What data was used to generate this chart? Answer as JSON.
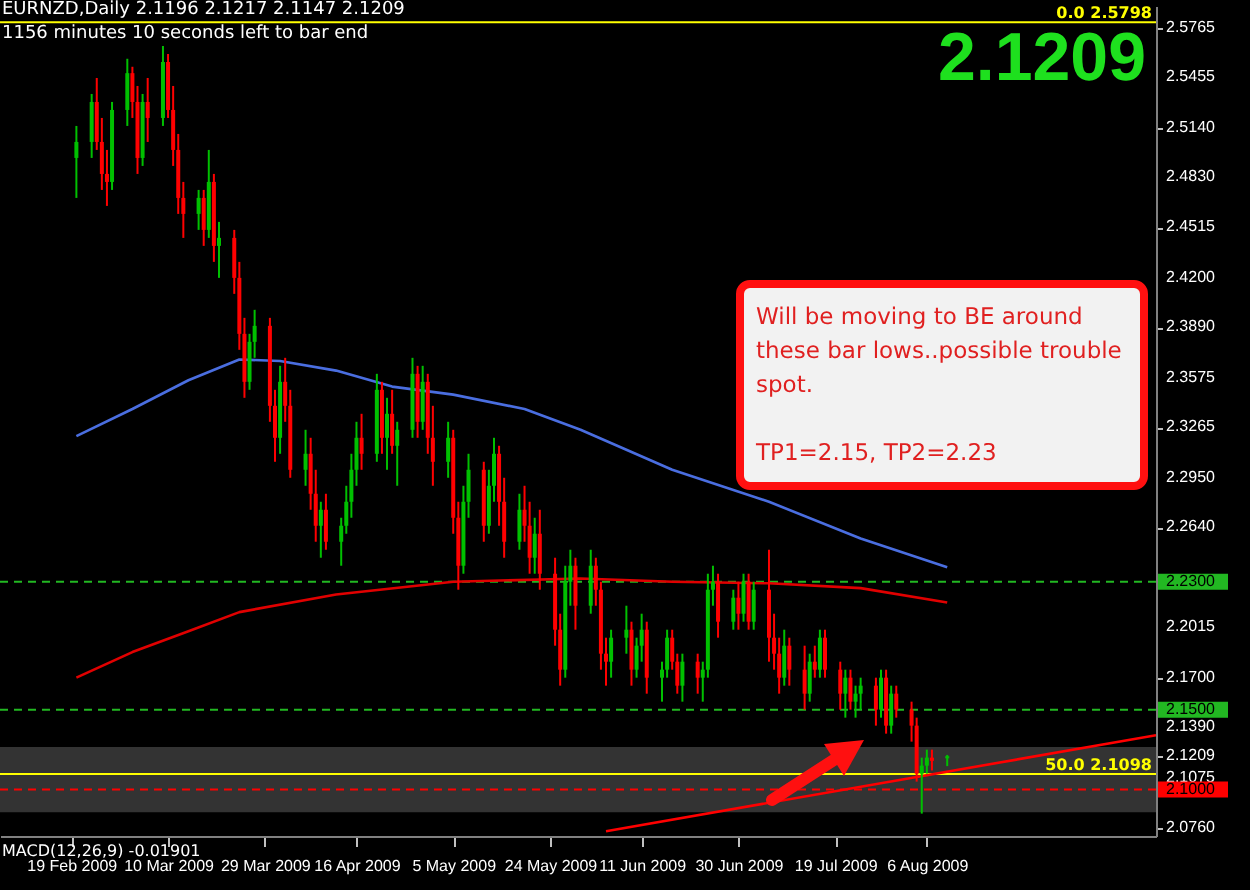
{
  "chart_data": {
    "type": "candlestick",
    "title": "EURNZD,Daily  2.1196 2.1217 2.1147 2.1209",
    "subtitle": "1156 minutes 10 seconds left to bar end",
    "annotations": [
      "Will be moving to BE around these bar lows..possible trouble spot.",
      "TP1=2.15, TP2=2.23",
      "2.1209",
      "MACD(12,26,9) -0.01901"
    ],
    "xlim": [
      "2009-02-05",
      "2009-09-20"
    ],
    "xticks": [
      {
        "value": "2009-02-19",
        "label": "19 Feb 2009"
      },
      {
        "value": "2009-03-10",
        "label": "10 Mar 2009"
      },
      {
        "value": "2009-03-29",
        "label": "29 Mar 2009"
      },
      {
        "value": "2009-04-16",
        "label": "16 Apr 2009"
      },
      {
        "value": "2009-05-05",
        "label": "5 May 2009"
      },
      {
        "value": "2009-05-24",
        "label": "24 May 2009"
      },
      {
        "value": "2009-06-11",
        "label": "11 Jun 2009"
      },
      {
        "value": "2009-06-30",
        "label": "30 Jun 2009"
      },
      {
        "value": "2009-07-19",
        "label": "19 Jul 2009"
      },
      {
        "value": "2009-08-06",
        "label": "6 Aug 2009"
      }
    ],
    "ylim": [
      2.071,
      2.59
    ],
    "yticks": [
      2.5765,
      2.5455,
      {
        "value": 2.514,
        "label": "2.5140"
      },
      {
        "value": 2.483,
        "label": "2.4830"
      },
      2.4515,
      {
        "value": 2.42,
        "label": "2.4200"
      },
      {
        "value": 2.389,
        "label": "2.3890"
      },
      2.3575,
      2.3265,
      {
        "value": 2.295,
        "label": "2.2950"
      },
      {
        "value": 2.264,
        "label": "2.2640"
      },
      2.2015,
      {
        "value": 2.17,
        "label": "2.1700"
      },
      {
        "value": 2.139,
        "label": "2.1390"
      },
      {
        "value": 2.1209,
        "label": "2.1209"
      },
      2.1075,
      {
        "value": 2.076,
        "label": "2.0760"
      }
    ],
    "grid": false,
    "x": [
      "2009-02-20",
      "2009-02-23",
      "2009-02-24",
      "2009-02-25",
      "2009-02-26",
      "2009-02-27",
      "2009-03-02",
      "2009-03-03",
      "2009-03-04",
      "2009-03-05",
      "2009-03-06",
      "2009-03-09",
      "2009-03-10",
      "2009-03-11",
      "2009-03-12",
      "2009-03-13",
      "2009-03-16",
      "2009-03-17",
      "2009-03-18",
      "2009-03-19",
      "2009-03-20",
      "2009-03-23",
      "2009-03-24",
      "2009-03-25",
      "2009-03-26",
      "2009-03-27",
      "2009-03-30",
      "2009-03-31",
      "2009-04-01",
      "2009-04-02",
      "2009-04-03",
      "2009-04-06",
      "2009-04-07",
      "2009-04-08",
      "2009-04-09",
      "2009-04-10",
      "2009-04-13",
      "2009-04-14",
      "2009-04-15",
      "2009-04-16",
      "2009-04-17",
      "2009-04-20",
      "2009-04-21",
      "2009-04-22",
      "2009-04-23",
      "2009-04-24",
      "2009-04-27",
      "2009-04-28",
      "2009-04-29",
      "2009-04-30",
      "2009-05-01",
      "2009-05-04",
      "2009-05-05",
      "2009-05-06",
      "2009-05-07",
      "2009-05-08",
      "2009-05-11",
      "2009-05-12",
      "2009-05-13",
      "2009-05-14",
      "2009-05-15",
      "2009-05-18",
      "2009-05-19",
      "2009-05-20",
      "2009-05-21",
      "2009-05-22",
      "2009-05-25",
      "2009-05-26",
      "2009-05-27",
      "2009-05-28",
      "2009-05-29",
      "2009-06-01",
      "2009-06-02",
      "2009-06-03",
      "2009-06-04",
      "2009-06-05",
      "2009-06-08",
      "2009-06-09",
      "2009-06-10",
      "2009-06-11",
      "2009-06-12",
      "2009-06-15",
      "2009-06-16",
      "2009-06-17",
      "2009-06-18",
      "2009-06-19",
      "2009-06-22",
      "2009-06-23",
      "2009-06-24",
      "2009-06-25",
      "2009-06-26",
      "2009-06-29",
      "2009-06-30",
      "2009-07-01",
      "2009-07-02",
      "2009-07-03",
      "2009-07-06",
      "2009-07-07",
      "2009-07-08",
      "2009-07-09",
      "2009-07-10",
      "2009-07-13",
      "2009-07-14",
      "2009-07-15",
      "2009-07-16",
      "2009-07-17",
      "2009-07-20",
      "2009-07-21",
      "2009-07-22",
      "2009-07-23",
      "2009-07-24",
      "2009-07-27",
      "2009-07-28",
      "2009-07-29",
      "2009-07-30",
      "2009-07-31",
      "2009-08-03",
      "2009-08-04",
      "2009-08-05",
      "2009-08-06",
      "2009-08-07",
      "2009-08-10"
    ],
    "ohlc": [
      [
        2.495,
        2.515,
        2.47,
        2.505
      ],
      [
        2.505,
        2.535,
        2.495,
        2.53
      ],
      [
        2.53,
        2.545,
        2.5,
        2.505
      ],
      [
        2.505,
        2.52,
        2.475,
        2.485
      ],
      [
        2.485,
        2.5,
        2.465,
        2.48
      ],
      [
        2.48,
        2.53,
        2.475,
        2.525
      ],
      [
        2.525,
        2.557,
        2.515,
        2.548
      ],
      [
        2.548,
        2.552,
        2.52,
        2.53
      ],
      [
        2.53,
        2.54,
        2.485,
        2.495
      ],
      [
        2.495,
        2.535,
        2.49,
        2.53
      ],
      [
        2.53,
        2.545,
        2.505,
        2.52
      ],
      [
        2.52,
        2.565,
        2.515,
        2.555
      ],
      [
        2.555,
        2.56,
        2.52,
        2.525
      ],
      [
        2.525,
        2.54,
        2.49,
        2.5
      ],
      [
        2.5,
        2.51,
        2.46,
        2.47
      ],
      [
        2.47,
        2.48,
        2.445,
        2.46
      ],
      [
        2.46,
        2.475,
        2.45,
        2.47
      ],
      [
        2.47,
        2.475,
        2.44,
        2.45
      ],
      [
        2.45,
        2.5,
        2.445,
        2.48
      ],
      [
        2.48,
        2.485,
        2.43,
        2.44
      ],
      [
        2.44,
        2.455,
        2.42,
        2.445
      ],
      [
        2.445,
        2.45,
        2.41,
        2.42
      ],
      [
        2.42,
        2.43,
        2.375,
        2.385
      ],
      [
        2.385,
        2.395,
        2.345,
        2.355
      ],
      [
        2.355,
        2.385,
        2.35,
        2.38
      ],
      [
        2.38,
        2.4,
        2.37,
        2.39
      ],
      [
        2.39,
        2.395,
        2.33,
        2.34
      ],
      [
        2.34,
        2.35,
        2.305,
        2.32
      ],
      [
        2.32,
        2.365,
        2.31,
        2.355
      ],
      [
        2.355,
        2.37,
        2.33,
        2.34
      ],
      [
        2.34,
        2.35,
        2.295,
        2.3
      ],
      [
        2.3,
        2.325,
        2.29,
        2.31
      ],
      [
        2.31,
        2.32,
        2.275,
        2.285
      ],
      [
        2.285,
        2.3,
        2.255,
        2.265
      ],
      [
        2.265,
        2.28,
        2.245,
        2.275
      ],
      [
        2.275,
        2.285,
        2.25,
        2.255
      ],
      [
        2.255,
        2.27,
        2.24,
        2.265
      ],
      [
        2.265,
        2.29,
        2.26,
        2.28
      ],
      [
        2.28,
        2.31,
        2.27,
        2.3
      ],
      [
        2.3,
        2.33,
        2.29,
        2.32
      ],
      [
        2.32,
        2.335,
        2.3,
        2.31
      ],
      [
        2.31,
        2.36,
        2.305,
        2.35
      ],
      [
        2.35,
        2.355,
        2.31,
        2.32
      ],
      [
        2.32,
        2.345,
        2.3,
        2.335
      ],
      [
        2.335,
        2.35,
        2.31,
        2.315
      ],
      [
        2.315,
        2.33,
        2.29,
        2.325
      ],
      [
        2.325,
        2.37,
        2.32,
        2.36
      ],
      [
        2.36,
        2.365,
        2.32,
        2.33
      ],
      [
        2.33,
        2.365,
        2.325,
        2.355
      ],
      [
        2.355,
        2.36,
        2.31,
        2.32
      ],
      [
        2.32,
        2.34,
        2.29,
        2.305
      ],
      [
        2.305,
        2.33,
        2.295,
        2.32
      ],
      [
        2.32,
        2.325,
        2.26,
        2.27
      ],
      [
        2.27,
        2.28,
        2.225,
        2.24
      ],
      [
        2.24,
        2.29,
        2.235,
        2.28
      ],
      [
        2.28,
        2.31,
        2.27,
        2.3
      ],
      [
        2.3,
        2.305,
        2.255,
        2.265
      ],
      [
        2.265,
        2.3,
        2.26,
        2.29
      ],
      [
        2.29,
        2.32,
        2.28,
        2.31
      ],
      [
        2.31,
        2.315,
        2.265,
        2.28
      ],
      [
        2.28,
        2.295,
        2.245,
        2.255
      ],
      [
        2.255,
        2.285,
        2.25,
        2.275
      ],
      [
        2.275,
        2.29,
        2.255,
        2.265
      ],
      [
        2.265,
        2.28,
        2.235,
        2.245
      ],
      [
        2.245,
        2.27,
        2.235,
        2.26
      ],
      [
        2.26,
        2.275,
        2.225,
        2.235
      ],
      [
        2.235,
        2.245,
        2.19,
        2.2
      ],
      [
        2.2,
        2.21,
        2.165,
        2.175
      ],
      [
        2.175,
        2.24,
        2.17,
        2.23
      ],
      [
        2.23,
        2.25,
        2.215,
        2.24
      ],
      [
        2.24,
        2.245,
        2.2,
        2.215
      ],
      [
        2.215,
        2.25,
        2.21,
        2.24
      ],
      [
        2.24,
        2.245,
        2.215,
        2.225
      ],
      [
        2.225,
        2.23,
        2.175,
        2.185
      ],
      [
        2.185,
        2.195,
        2.165,
        2.18
      ],
      [
        2.18,
        2.2,
        2.17,
        2.195
      ],
      [
        2.195,
        2.215,
        2.185,
        2.2
      ],
      [
        2.2,
        2.205,
        2.165,
        2.175
      ],
      [
        2.175,
        2.195,
        2.17,
        2.19
      ],
      [
        2.19,
        2.21,
        2.18,
        2.2
      ],
      [
        2.2,
        2.205,
        2.16,
        2.17
      ],
      [
        2.17,
        2.18,
        2.155,
        2.175
      ],
      [
        2.175,
        2.2,
        2.17,
        2.195
      ],
      [
        2.195,
        2.2,
        2.175,
        2.18
      ],
      [
        2.18,
        2.185,
        2.16,
        2.165
      ],
      [
        2.165,
        2.185,
        2.155,
        2.18
      ],
      [
        2.18,
        2.185,
        2.16,
        2.17
      ],
      [
        2.17,
        2.18,
        2.155,
        2.175
      ],
      [
        2.175,
        2.235,
        2.17,
        2.225
      ],
      [
        2.225,
        2.24,
        2.215,
        2.23
      ],
      [
        2.23,
        2.235,
        2.195,
        2.205
      ],
      [
        2.205,
        2.225,
        2.2,
        2.22
      ],
      [
        2.22,
        2.23,
        2.2,
        2.21
      ],
      [
        2.21,
        2.235,
        2.205,
        2.23
      ],
      [
        2.23,
        2.235,
        2.2,
        2.205
      ],
      [
        2.205,
        2.23,
        2.2,
        2.225
      ],
      [
        2.225,
        2.25,
        2.18,
        2.195
      ],
      [
        2.195,
        2.21,
        2.175,
        2.185
      ],
      [
        2.185,
        2.195,
        2.16,
        2.17
      ],
      [
        2.17,
        2.2,
        2.165,
        2.19
      ],
      [
        2.19,
        2.195,
        2.165,
        2.175
      ],
      [
        2.175,
        2.19,
        2.15,
        2.16
      ],
      [
        2.16,
        2.185,
        2.155,
        2.18
      ],
      [
        2.18,
        2.19,
        2.17,
        2.175
      ],
      [
        2.175,
        2.2,
        2.17,
        2.195
      ],
      [
        2.195,
        2.2,
        2.17,
        2.175
      ],
      [
        2.175,
        2.18,
        2.15,
        2.16
      ],
      [
        2.16,
        2.175,
        2.145,
        2.17
      ],
      [
        2.17,
        2.175,
        2.15,
        2.155
      ],
      [
        2.155,
        2.165,
        2.145,
        2.16
      ],
      [
        2.16,
        2.17,
        2.15,
        2.165
      ],
      [
        2.165,
        2.17,
        2.14,
        2.15
      ],
      [
        2.15,
        2.175,
        2.145,
        2.17
      ],
      [
        2.17,
        2.175,
        2.135,
        2.14
      ],
      [
        2.14,
        2.165,
        2.135,
        2.16
      ],
      [
        2.16,
        2.165,
        2.145,
        2.15
      ],
      [
        2.15,
        2.155,
        2.13,
        2.14
      ],
      [
        2.14,
        2.145,
        2.105,
        2.11
      ],
      [
        2.11,
        2.12,
        2.085,
        2.115
      ],
      [
        2.115,
        2.125,
        2.11,
        2.12
      ],
      [
        2.12,
        2.125,
        2.112,
        2.118
      ],
      [
        2.1196,
        2.1217,
        2.1147,
        2.1209
      ]
    ],
    "colors": [
      "#00c000",
      "#00c000",
      "#ff0000",
      "#ff0000",
      "#ff0000",
      "#00c000",
      "#00c000",
      "#ff0000",
      "#ff0000",
      "#00c000",
      "#ff0000",
      "#00c000",
      "#ff0000",
      "#ff0000",
      "#ff0000",
      "#ff0000",
      "#00c000",
      "#ff0000",
      "#00c000",
      "#ff0000",
      "#00c000",
      "#ff0000",
      "#ff0000",
      "#ff0000",
      "#00c000",
      "#00c000",
      "#ff0000",
      "#ff0000",
      "#00c000",
      "#ff0000",
      "#ff0000",
      "#00c000",
      "#ff0000",
      "#ff0000",
      "#00c000",
      "#ff0000",
      "#00c000",
      "#00c000",
      "#00c000",
      "#00c000",
      "#ff0000",
      "#00c000",
      "#ff0000",
      "#00c000",
      "#ff0000",
      "#00c000",
      "#00c000",
      "#ff0000",
      "#00c000",
      "#ff0000",
      "#ff0000",
      "#00c000",
      "#ff0000",
      "#ff0000",
      "#00c000",
      "#00c000",
      "#ff0000",
      "#00c000",
      "#00c000",
      "#ff0000",
      "#ff0000",
      "#00c000",
      "#ff0000",
      "#ff0000",
      "#00c000",
      "#ff0000",
      "#ff0000",
      "#ff0000",
      "#00c000",
      "#00c000",
      "#ff0000",
      "#00c000",
      "#ff0000",
      "#ff0000",
      "#ff0000",
      "#00c000",
      "#00c000",
      "#ff0000",
      "#00c000",
      "#00c000",
      "#ff0000",
      "#00c000",
      "#00c000",
      "#ff0000",
      "#ff0000",
      "#00c000",
      "#ff0000",
      "#00c000",
      "#00c000",
      "#00c000",
      "#ff0000",
      "#00c000",
      "#ff0000",
      "#00c000",
      "#ff0000",
      "#00c000",
      "#ff0000",
      "#ff0000",
      "#ff0000",
      "#00c000",
      "#ff0000",
      "#ff0000",
      "#00c000",
      "#ff0000",
      "#00c000",
      "#ff0000",
      "#ff0000",
      "#00c000",
      "#ff0000",
      "#00c000",
      "#00c000",
      "#ff0000",
      "#00c000",
      "#ff0000",
      "#00c000",
      "#ff0000",
      "#ff0000",
      "#ff0000",
      "#00c000",
      "#00c000",
      "#ff0000",
      "#00c000"
    ],
    "series": [
      {
        "type": "line",
        "color": "#4a6ee0",
        "x": [
          "2009-02-20",
          "2009-03-03",
          "2009-03-14",
          "2009-03-24",
          "2009-04-01",
          "2009-04-12",
          "2009-04-23",
          "2009-05-05",
          "2009-05-19",
          "2009-05-30",
          "2009-06-17",
          "2009-07-06",
          "2009-07-24",
          "2009-08-10"
        ],
        "values": [
          2.321,
          2.338,
          2.356,
          2.369,
          2.368,
          2.362,
          2.352,
          2.347,
          2.338,
          2.325,
          2.3,
          2.28,
          2.257,
          2.239
        ]
      },
      {
        "type": "line",
        "color": "#e00000",
        "x": [
          "2009-02-20",
          "2009-03-03",
          "2009-03-14",
          "2009-03-24",
          "2009-04-12",
          "2009-05-05",
          "2009-05-30",
          "2009-06-17",
          "2009-07-06",
          "2009-07-24",
          "2009-08-10"
        ],
        "values": [
          2.17,
          2.186,
          2.199,
          2.211,
          2.222,
          2.23,
          2.232,
          2.23,
          2.229,
          2.226,
          2.217
        ]
      },
      {
        "type": "line",
        "color": "#ff0000",
        "x": [
          "2009-06-04",
          "2009-09-20"
        ],
        "values": [
          2.074,
          2.134
        ]
      }
    ],
    "ref_lines": [
      {
        "axis": "y",
        "value": 2.5798,
        "label": "0.0 2.5798",
        "color": "#ffff00",
        "line_style": "solid"
      },
      {
        "axis": "y",
        "value": 2.1098,
        "label": "50.0 2.1098",
        "color": "#ffff00",
        "line_style": "solid"
      },
      {
        "axis": "y",
        "value": 2.23,
        "label": "2.2300",
        "color": "#22b822",
        "line_style": "dashed"
      },
      {
        "axis": "y",
        "value": 2.15,
        "label": "2.1500",
        "color": "#22b822",
        "line_style": "dashed"
      },
      {
        "axis": "y",
        "value": 2.1,
        "label": "2.1000",
        "color": "#ff0000",
        "line_style": "dashed"
      }
    ],
    "bands": [
      {
        "axis": "y",
        "from": 2.0858,
        "to": 2.1266,
        "color": "#3c3c3c"
      }
    ]
  }
}
